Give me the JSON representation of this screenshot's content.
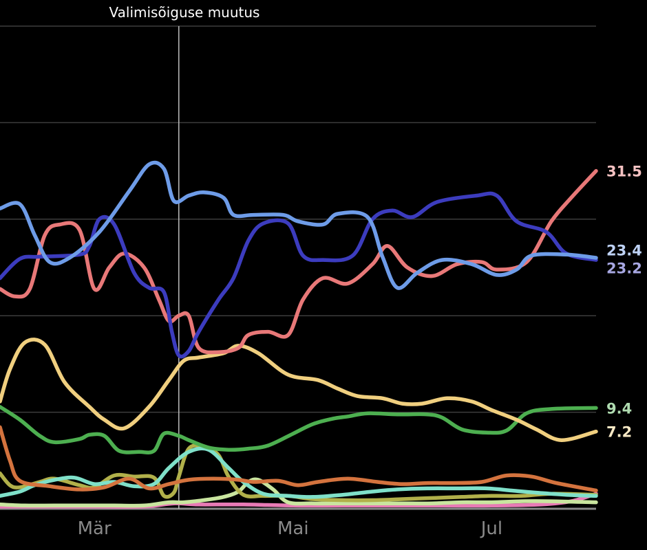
{
  "chart_data": {
    "type": "line",
    "title": "",
    "xlabel": "",
    "ylabel": "",
    "x_ticks": [
      {
        "month": 3,
        "label": "Mär"
      },
      {
        "month": 5,
        "label": "Mai"
      },
      {
        "month": 7,
        "label": "Jul"
      }
    ],
    "y_gridlines": [
      9,
      18,
      27,
      36,
      45
    ],
    "ylim": [
      0,
      45
    ],
    "xlim": [
      2.05,
      8.05
    ],
    "grid": true,
    "legend": "none",
    "annotation": {
      "month": 3.85,
      "label": "Valimisõiguse muutus"
    },
    "series": [
      {
        "color": "#6e9ce8",
        "end_label": "23.4",
        "points": [
          [
            2.05,
            28
          ],
          [
            2.25,
            28.4
          ],
          [
            2.4,
            25.5
          ],
          [
            2.55,
            23
          ],
          [
            2.75,
            23.4
          ],
          [
            3.05,
            25.8
          ],
          [
            3.35,
            29.6
          ],
          [
            3.55,
            32.1
          ],
          [
            3.7,
            31.7
          ],
          [
            3.8,
            28.7
          ],
          [
            3.95,
            29.2
          ],
          [
            4.1,
            29.5
          ],
          [
            4.3,
            29
          ],
          [
            4.4,
            27.4
          ],
          [
            4.6,
            27.4
          ],
          [
            4.9,
            27.4
          ],
          [
            5.05,
            26.8
          ],
          [
            5.3,
            26.5
          ],
          [
            5.45,
            27.5
          ],
          [
            5.75,
            27.2
          ],
          [
            5.9,
            23.5
          ],
          [
            6.05,
            20.6
          ],
          [
            6.25,
            22
          ],
          [
            6.5,
            23.2
          ],
          [
            6.8,
            22.8
          ],
          [
            7.05,
            21.8
          ],
          [
            7.25,
            22.3
          ],
          [
            7.4,
            23.6
          ],
          [
            7.75,
            23.7
          ],
          [
            8.05,
            23.4
          ]
        ]
      },
      {
        "color": "#3c3cbe",
        "end_label": "23.2",
        "points": [
          [
            2.05,
            21.5
          ],
          [
            2.25,
            23.3
          ],
          [
            2.45,
            23.5
          ],
          [
            2.85,
            23.7
          ],
          [
            2.95,
            24.5
          ],
          [
            3.05,
            27
          ],
          [
            3.2,
            26.5
          ],
          [
            3.4,
            22
          ],
          [
            3.55,
            20.6
          ],
          [
            3.7,
            20.2
          ],
          [
            3.78,
            16.5
          ],
          [
            3.85,
            14.3
          ],
          [
            3.95,
            14.7
          ],
          [
            4.05,
            16.5
          ],
          [
            4.25,
            19.5
          ],
          [
            4.4,
            21.5
          ],
          [
            4.55,
            25
          ],
          [
            4.7,
            26.6
          ],
          [
            4.95,
            26.6
          ],
          [
            5.1,
            23.6
          ],
          [
            5.3,
            23.2
          ],
          [
            5.6,
            23.6
          ],
          [
            5.8,
            27
          ],
          [
            6,
            27.8
          ],
          [
            6.2,
            27.2
          ],
          [
            6.45,
            28.6
          ],
          [
            6.85,
            29.2
          ],
          [
            7.05,
            29.2
          ],
          [
            7.25,
            26.8
          ],
          [
            7.55,
            25.8
          ],
          [
            7.75,
            23.8
          ],
          [
            8.05,
            23.2
          ]
        ]
      },
      {
        "color": "#e87878",
        "end_label": "31.5",
        "points": [
          [
            2.05,
            20.5
          ],
          [
            2.2,
            19.8
          ],
          [
            2.35,
            20.5
          ],
          [
            2.5,
            25.5
          ],
          [
            2.65,
            26.5
          ],
          [
            2.85,
            26
          ],
          [
            3.0,
            20.5
          ],
          [
            3.15,
            22.5
          ],
          [
            3.3,
            23.8
          ],
          [
            3.5,
            22.5
          ],
          [
            3.65,
            19.5
          ],
          [
            3.75,
            17.5
          ],
          [
            3.85,
            18
          ],
          [
            3.95,
            18
          ],
          [
            4.05,
            15
          ],
          [
            4.25,
            14.6
          ],
          [
            4.45,
            15
          ],
          [
            4.55,
            16.2
          ],
          [
            4.75,
            16.5
          ],
          [
            4.95,
            16.2
          ],
          [
            5.1,
            19.5
          ],
          [
            5.3,
            21.5
          ],
          [
            5.55,
            21
          ],
          [
            5.8,
            22.8
          ],
          [
            5.95,
            24.5
          ],
          [
            6.15,
            22.5
          ],
          [
            6.4,
            21.7
          ],
          [
            6.65,
            22.8
          ],
          [
            6.9,
            23
          ],
          [
            7.05,
            22.3
          ],
          [
            7.35,
            23
          ],
          [
            7.6,
            26.8
          ],
          [
            7.8,
            29
          ],
          [
            8.05,
            31.5
          ]
        ]
      },
      {
        "color": "#f0cf7f",
        "end_label": "7.2",
        "points": [
          [
            2.05,
            10
          ],
          [
            2.15,
            13
          ],
          [
            2.3,
            15.5
          ],
          [
            2.5,
            15.3
          ],
          [
            2.7,
            11.8
          ],
          [
            2.95,
            9.5
          ],
          [
            3.1,
            8.3
          ],
          [
            3.3,
            7.5
          ],
          [
            3.55,
            9.5
          ],
          [
            3.75,
            12
          ],
          [
            3.9,
            13.8
          ],
          [
            4.05,
            14.1
          ],
          [
            4.3,
            14.5
          ],
          [
            4.45,
            15.2
          ],
          [
            4.65,
            14.5
          ],
          [
            4.95,
            12.5
          ],
          [
            5.25,
            12
          ],
          [
            5.45,
            11.2
          ],
          [
            5.65,
            10.5
          ],
          [
            5.9,
            10.3
          ],
          [
            6.1,
            9.8
          ],
          [
            6.3,
            9.8
          ],
          [
            6.55,
            10.3
          ],
          [
            6.8,
            10
          ],
          [
            7.0,
            9.2
          ],
          [
            7.25,
            8.3
          ],
          [
            7.45,
            7.4
          ],
          [
            7.7,
            6.4
          ],
          [
            8.05,
            7.2
          ]
        ]
      },
      {
        "color": "#4daf50",
        "end_label": "9.4",
        "points": [
          [
            2.05,
            9.5
          ],
          [
            2.25,
            8.3
          ],
          [
            2.45,
            6.8
          ],
          [
            2.6,
            6.2
          ],
          [
            2.85,
            6.5
          ],
          [
            2.95,
            6.9
          ],
          [
            3.1,
            6.8
          ],
          [
            3.25,
            5.4
          ],
          [
            3.45,
            5.3
          ],
          [
            3.6,
            5.4
          ],
          [
            3.7,
            7
          ],
          [
            3.85,
            6.8
          ],
          [
            3.95,
            6.4
          ],
          [
            4.15,
            5.7
          ],
          [
            4.35,
            5.5
          ],
          [
            4.55,
            5.6
          ],
          [
            4.75,
            5.9
          ],
          [
            5.0,
            7
          ],
          [
            5.2,
            7.9
          ],
          [
            5.4,
            8.4
          ],
          [
            5.55,
            8.6
          ],
          [
            5.75,
            8.9
          ],
          [
            6.05,
            8.8
          ],
          [
            6.35,
            8.8
          ],
          [
            6.5,
            8.5
          ],
          [
            6.7,
            7.4
          ],
          [
            6.95,
            7.1
          ],
          [
            7.15,
            7.3
          ],
          [
            7.35,
            8.9
          ],
          [
            7.6,
            9.3
          ],
          [
            8.05,
            9.4
          ]
        ]
      },
      {
        "color": "#d4733e",
        "end_label": "",
        "points": [
          [
            2.05,
            7.6
          ],
          [
            2.15,
            4.5
          ],
          [
            2.25,
            2.6
          ],
          [
            2.55,
            2.1
          ],
          [
            2.85,
            1.8
          ],
          [
            3.1,
            2
          ],
          [
            3.35,
            2.8
          ],
          [
            3.55,
            1.9
          ],
          [
            3.75,
            2.3
          ],
          [
            3.95,
            2.7
          ],
          [
            4.2,
            2.8
          ],
          [
            4.45,
            2.7
          ],
          [
            4.6,
            2.5
          ],
          [
            4.85,
            2.6
          ],
          [
            5.05,
            2.2
          ],
          [
            5.25,
            2.5
          ],
          [
            5.55,
            2.8
          ],
          [
            5.85,
            2.5
          ],
          [
            6.1,
            2.3
          ],
          [
            6.35,
            2.4
          ],
          [
            6.6,
            2.4
          ],
          [
            6.9,
            2.5
          ],
          [
            7.15,
            3.1
          ],
          [
            7.4,
            3
          ],
          [
            7.65,
            2.4
          ],
          [
            8.05,
            1.7
          ]
        ]
      },
      {
        "color": "#7fe0c9",
        "end_label": "",
        "points": [
          [
            2.05,
            1.2
          ],
          [
            2.25,
            1.6
          ],
          [
            2.4,
            2.2
          ],
          [
            2.6,
            2.7
          ],
          [
            2.8,
            2.9
          ],
          [
            3.0,
            2.3
          ],
          [
            3.2,
            2.5
          ],
          [
            3.4,
            2.1
          ],
          [
            3.6,
            2.3
          ],
          [
            3.75,
            3.8
          ],
          [
            3.95,
            5.3
          ],
          [
            4.15,
            5.5
          ],
          [
            4.35,
            3.8
          ],
          [
            4.5,
            2.5
          ],
          [
            4.7,
            1.4
          ],
          [
            4.95,
            1.2
          ],
          [
            5.2,
            1.1
          ],
          [
            5.5,
            1.3
          ],
          [
            5.8,
            1.6
          ],
          [
            6.05,
            1.8
          ],
          [
            6.35,
            1.9
          ],
          [
            6.65,
            1.9
          ],
          [
            6.95,
            1.9
          ],
          [
            7.2,
            1.7
          ],
          [
            7.45,
            1.5
          ],
          [
            7.75,
            1.3
          ],
          [
            8.05,
            1.2
          ]
        ]
      },
      {
        "color": "#b1b04a",
        "end_label": "",
        "points": [
          [
            2.05,
            3.3
          ],
          [
            2.15,
            2.2
          ],
          [
            2.25,
            2
          ],
          [
            2.45,
            2.5
          ],
          [
            2.6,
            2.8
          ],
          [
            2.85,
            2.2
          ],
          [
            3.0,
            2
          ],
          [
            3.2,
            3.1
          ],
          [
            3.4,
            3
          ],
          [
            3.6,
            2.9
          ],
          [
            3.7,
            1.2
          ],
          [
            3.8,
            1.5
          ],
          [
            3.85,
            3
          ],
          [
            3.95,
            5.6
          ],
          [
            4.1,
            5.8
          ],
          [
            4.25,
            5
          ],
          [
            4.35,
            3
          ],
          [
            4.5,
            1.3
          ],
          [
            4.7,
            1.2
          ],
          [
            4.95,
            1.2
          ],
          [
            5.2,
            0.9
          ],
          [
            5.5,
            0.8
          ],
          [
            5.8,
            0.8
          ],
          [
            6.1,
            0.9
          ],
          [
            6.4,
            1
          ],
          [
            6.7,
            1.1
          ],
          [
            7.0,
            1.2
          ],
          [
            7.3,
            1.2
          ],
          [
            7.6,
            1.4
          ],
          [
            8.05,
            1.3
          ]
        ]
      },
      {
        "color": "#c9e59f",
        "end_label": "",
        "points": [
          [
            2.05,
            0.4
          ],
          [
            2.3,
            0.3
          ],
          [
            2.6,
            0.3
          ],
          [
            2.9,
            0.3
          ],
          [
            3.2,
            0.3
          ],
          [
            3.5,
            0.3
          ],
          [
            3.75,
            0.6
          ],
          [
            3.9,
            0.6
          ],
          [
            4.1,
            0.8
          ],
          [
            4.3,
            1.1
          ],
          [
            4.45,
            1.6
          ],
          [
            4.55,
            2.5
          ],
          [
            4.65,
            2.7
          ],
          [
            4.8,
            1.8
          ],
          [
            4.95,
            0.6
          ],
          [
            5.2,
            0.5
          ],
          [
            5.5,
            0.5
          ],
          [
            5.8,
            0.5
          ],
          [
            6.1,
            0.5
          ],
          [
            6.4,
            0.5
          ],
          [
            6.7,
            0.6
          ],
          [
            7.0,
            0.6
          ],
          [
            7.3,
            0.7
          ],
          [
            7.6,
            0.7
          ],
          [
            8.05,
            0.6
          ]
        ]
      },
      {
        "color": "#e87ab5",
        "end_label": "",
        "points": [
          [
            2.05,
            0.2
          ],
          [
            2.5,
            0.2
          ],
          [
            3.0,
            0.2
          ],
          [
            3.5,
            0.2
          ],
          [
            3.8,
            0.5
          ],
          [
            4.05,
            0.4
          ],
          [
            4.5,
            0.4
          ],
          [
            5.0,
            0.3
          ],
          [
            5.5,
            0.3
          ],
          [
            6.0,
            0.3
          ],
          [
            6.5,
            0.3
          ],
          [
            7.0,
            0.3
          ],
          [
            7.5,
            0.4
          ],
          [
            7.8,
            0.7
          ],
          [
            8.05,
            1.4
          ]
        ]
      }
    ]
  }
}
